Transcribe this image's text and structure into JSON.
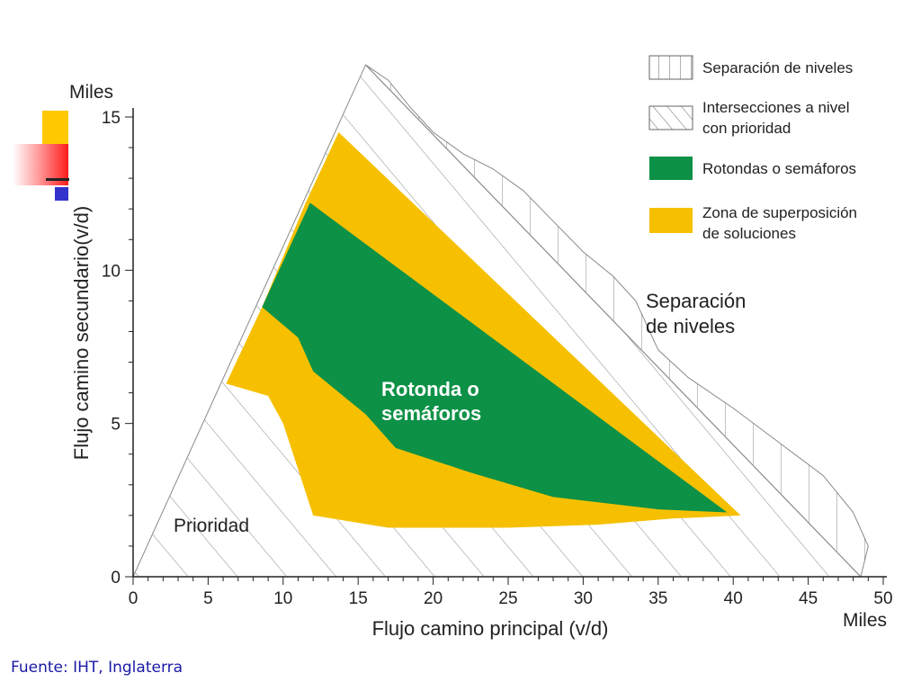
{
  "chart_data": {
    "type": "area",
    "title": "",
    "xlabel": "Flujo camino principal (v/d)",
    "ylabel": "Flujo camino secundario(v/d)",
    "x_unit": "Miles",
    "y_unit": "Miles",
    "xlim": [
      0,
      50
    ],
    "ylim": [
      0,
      15
    ],
    "x_ticks": [
      0,
      5,
      10,
      15,
      20,
      25,
      30,
      35,
      40,
      45,
      50
    ],
    "y_ticks": [
      0,
      5,
      10,
      15
    ],
    "grid": false,
    "legend_position": "top-right",
    "legend": [
      {
        "label": "Separación de niveles",
        "swatch": "vertical-hatch"
      },
      {
        "label": "Intersecciones a nivel con prioridad",
        "swatch": "diagonal-hatch"
      },
      {
        "label": "Rotondas o semáforos",
        "swatch": "solid",
        "color": "#0c9146"
      },
      {
        "label": "Zona de superposición de soluciones",
        "swatch": "solid",
        "color": "#f6c000"
      }
    ],
    "regions": [
      {
        "name": "Separación de niveles",
        "pattern": "vertical-hatch",
        "boundary": [
          [
            15.5,
            16.7
          ],
          [
            17,
            16.2
          ],
          [
            18.5,
            15.3
          ],
          [
            20,
            14.5
          ],
          [
            22,
            13.8
          ],
          [
            24,
            13.3
          ],
          [
            26,
            12.6
          ],
          [
            28,
            11.6
          ],
          [
            30,
            10.6
          ],
          [
            32,
            9.8
          ],
          [
            33.5,
            9.0
          ],
          [
            35,
            7.4
          ],
          [
            37,
            6.5
          ],
          [
            40,
            5.5
          ],
          [
            43,
            4.4
          ],
          [
            46,
            3.3
          ],
          [
            48,
            2.1
          ],
          [
            49,
            1.0
          ],
          [
            48.5,
            0
          ]
        ],
        "annotation": "Separación de niveles"
      },
      {
        "name": "Intersecciones a nivel con prioridad",
        "pattern": "diagonal-hatch",
        "boundary": [
          [
            0,
            0
          ],
          [
            15.5,
            16.7
          ],
          [
            48.5,
            0
          ]
        ],
        "annotation": "Prioridad"
      },
      {
        "name": "Zona de superposición de soluciones",
        "color": "#f6c000",
        "polygon": [
          [
            13.7,
            14.5
          ],
          [
            40.5,
            2.0
          ],
          [
            36,
            1.9
          ],
          [
            31,
            1.7
          ],
          [
            25,
            1.6
          ],
          [
            17,
            1.6
          ],
          [
            12,
            2.0
          ],
          [
            11,
            3.5
          ],
          [
            10,
            5.0
          ],
          [
            9,
            5.9
          ],
          [
            6.2,
            6.3
          ],
          [
            8.6,
            8.8
          ],
          [
            11.5,
            12.2
          ]
        ]
      },
      {
        "name": "Rotondas o semáforos",
        "color": "#0c9146",
        "polygon": [
          [
            11.8,
            12.2
          ],
          [
            39.6,
            2.1
          ],
          [
            35,
            2.2
          ],
          [
            28,
            2.6
          ],
          [
            22.5,
            3.4
          ],
          [
            17.5,
            4.2
          ],
          [
            15.5,
            5.3
          ],
          [
            12,
            6.7
          ],
          [
            11,
            7.8
          ],
          [
            8.6,
            8.8
          ]
        ],
        "annotation": "Rotonda o semáforos"
      }
    ]
  },
  "annotations": {
    "prioridad": "Prioridad",
    "separacion_line1": "Separación",
    "separacion_line2": "de niveles",
    "rotonda_line1": "Rotonda o",
    "rotonda_line2": "semáforos"
  },
  "legend_text": {
    "item1": "Separación de niveles",
    "item2_line1": "Intersecciones a nivel",
    "item2_line2": "con prioridad",
    "item3": "Rotondas o semáforos",
    "item4_line1": "Zona de superposición",
    "item4_line2": "de soluciones"
  },
  "source": "Fuente: IHT, Inglaterra",
  "colors": {
    "green": "#0c9146",
    "yellow": "#f6c000",
    "hatch": "#8a8a8a",
    "axis": "#222222",
    "source_text": "#1a1aa6"
  }
}
